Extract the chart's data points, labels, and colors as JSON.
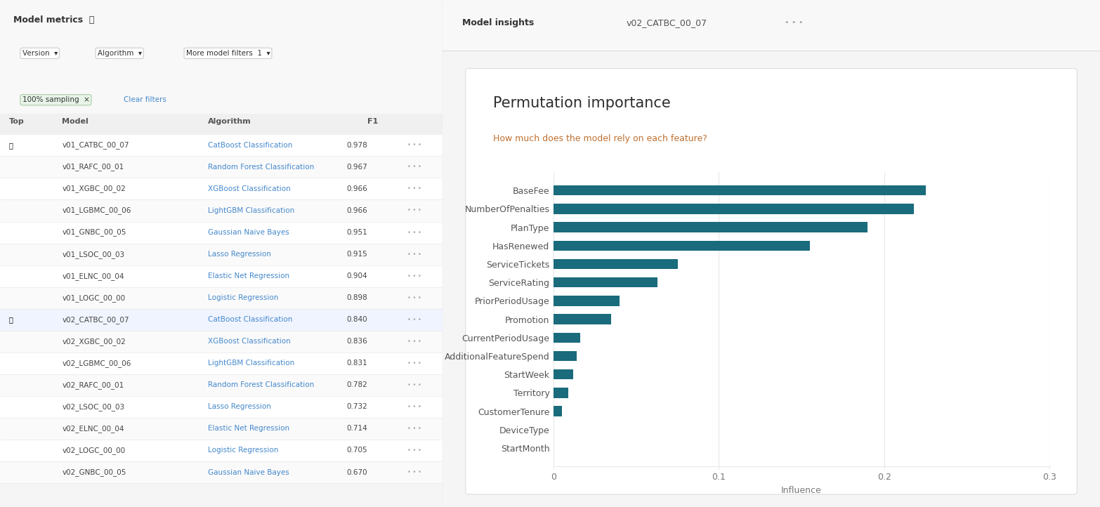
{
  "title": "Permutation importance",
  "subtitle": "How much does the model rely on each feature?",
  "xlabel": "Influence",
  "features": [
    "BaseFee",
    "NumberOfPenalties",
    "PlanType",
    "HasRenewed",
    "ServiceTickets",
    "ServiceRating",
    "PriorPeriodUsage",
    "Promotion",
    "CurrentPeriodUsage",
    "AdditionalFeatureSpend",
    "StartWeek",
    "Territory",
    "CustomerTenure",
    "DeviceType",
    "StartMonth"
  ],
  "values": [
    0.225,
    0.218,
    0.19,
    0.155,
    0.075,
    0.063,
    0.04,
    0.035,
    0.016,
    0.014,
    0.012,
    0.009,
    0.005,
    0.0,
    0.0
  ],
  "bar_color": "#1a6b7c",
  "title_color": "#2d2d2d",
  "subtitle_color": "#c07030",
  "panel_bg": "#f5f5f5",
  "chart_bg": "#ffffff",
  "border_color": "#dddddd",
  "xlim": [
    0,
    0.3
  ],
  "xticks": [
    0,
    0.1,
    0.2,
    0.3
  ],
  "grid_color": "#e8e8e8",
  "title_fontsize": 15,
  "subtitle_fontsize": 9,
  "label_fontsize": 9,
  "tick_fontsize": 9,
  "header_text": "Model insights",
  "header_model": "v02_CATBC_00_07",
  "header_dots": "...",
  "left_panel_labels": [
    "Model metrics",
    "Version",
    "Algorithm",
    "More model filters",
    "100% sampling",
    "Clear filters",
    "Top",
    "Model",
    "Algorithm",
    "F1"
  ],
  "table_rows": [
    [
      "v01_CATBC_00_07",
      "CatBoost Classification",
      "0.978"
    ],
    [
      "v01_RAFC_00_01",
      "Random Forest Classification",
      "0.967"
    ],
    [
      "v01_XGBC_00_02",
      "XGBoost Classification",
      "0.966"
    ],
    [
      "v01_LGBMC_00_06",
      "LightGBM Classification",
      "0.966"
    ],
    [
      "v01_GNBC_00_05",
      "Gaussian Naive Bayes",
      "0.951"
    ],
    [
      "v01_LSOC_00_03",
      "Lasso Regression",
      "0.915"
    ],
    [
      "v01_ELNC_00_04",
      "Elastic Net Regression",
      "0.904"
    ],
    [
      "v01_LOGC_00_00",
      "Logistic Regression",
      "0.898"
    ],
    [
      "v02_CATBC_00_07",
      "CatBoost Classification",
      "0.840"
    ],
    [
      "v02_XGBC_00_02",
      "XGBoost Classification",
      "0.836"
    ],
    [
      "v02_LGBMC_00_06",
      "LightGBM Classification",
      "0.831"
    ],
    [
      "v02_RAFC_00_01",
      "Random Forest Classification",
      "0.782"
    ],
    [
      "v02_LSOC_00_03",
      "Lasso Regression",
      "0.732"
    ],
    [
      "v02_ELNC_00_04",
      "Elastic Net Regression",
      "0.714"
    ],
    [
      "v02_LOGC_00_00",
      "Logistic Regression",
      "0.705"
    ],
    [
      "v02_GNBC_00_05",
      "Gaussian Naive Bayes",
      "0.670"
    ]
  ]
}
